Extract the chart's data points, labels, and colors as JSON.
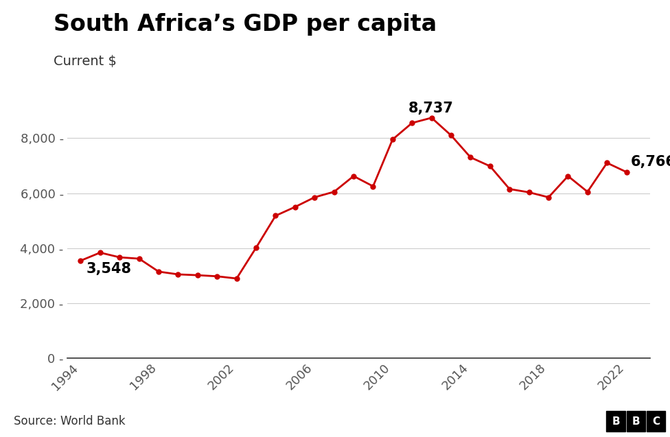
{
  "title": "South Africa’s GDP per capita",
  "subtitle": "Current $",
  "source": "Source: World Bank",
  "line_color": "#cc0000",
  "marker_color": "#cc0000",
  "background_color": "#ffffff",
  "years": [
    1994,
    1995,
    1996,
    1997,
    1998,
    1999,
    2000,
    2001,
    2002,
    2003,
    2004,
    2005,
    2006,
    2007,
    2008,
    2009,
    2010,
    2011,
    2012,
    2013,
    2014,
    2015,
    2016,
    2017,
    2018,
    2019,
    2020,
    2021,
    2022
  ],
  "values": [
    3548,
    3840,
    3670,
    3620,
    3150,
    3050,
    3020,
    2980,
    2900,
    4020,
    5180,
    5500,
    5850,
    6050,
    6620,
    6250,
    7950,
    8550,
    8737,
    8100,
    7300,
    6980,
    6150,
    6030,
    5850,
    6620,
    6050,
    7100,
    6766
  ],
  "annotate_first_year": 1994,
  "annotate_first_value": 3548,
  "annotate_peak_year": 2012,
  "annotate_peak_value": 8737,
  "annotate_last_year": 2022,
  "annotate_last_value": 6766,
  "ylim": [
    0,
    10000
  ],
  "yticks": [
    0,
    2000,
    4000,
    6000,
    8000
  ],
  "xticks": [
    1994,
    1998,
    2002,
    2006,
    2010,
    2014,
    2018,
    2022
  ],
  "xlim_min": 1993.3,
  "xlim_max": 2023.2,
  "title_fontsize": 24,
  "subtitle_fontsize": 14,
  "tick_fontsize": 13,
  "annotation_fontsize": 15,
  "source_fontsize": 12
}
